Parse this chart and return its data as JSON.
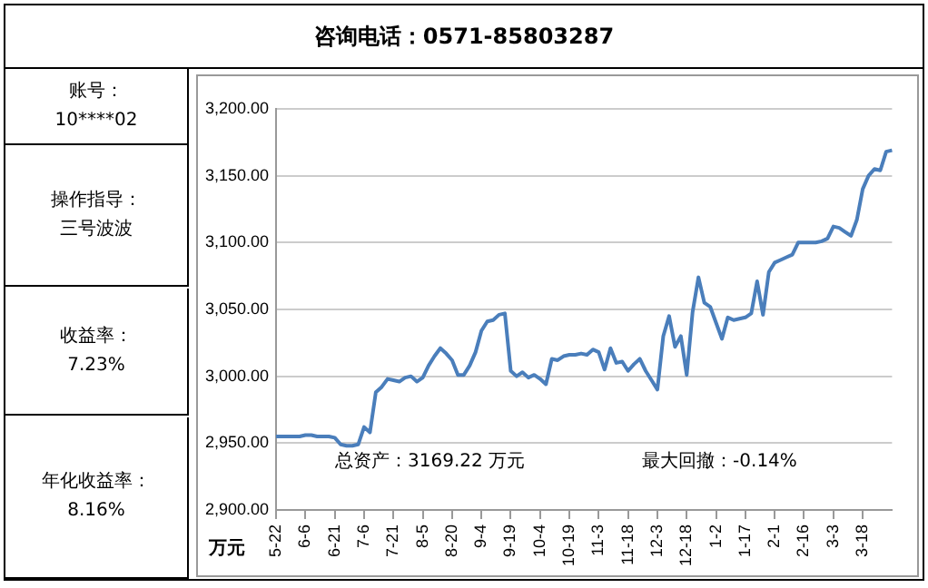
{
  "chart_data": {
    "type": "line",
    "title": "咨询电话：0571-85803287",
    "ylabel": "万元",
    "annotations": [
      "账号：10****02",
      "操作指导：三号波波",
      "收益率：7.23%",
      "年化收益率：8.16%",
      "总资产：3169.22 万元",
      "最大回撤：-0.14%"
    ],
    "categories": [
      "5-22",
      null,
      null,
      null,
      null,
      "6-6",
      null,
      null,
      null,
      null,
      "6-21",
      null,
      null,
      null,
      null,
      "7-6",
      null,
      null,
      null,
      null,
      "7-21",
      null,
      null,
      null,
      null,
      "8-5",
      null,
      null,
      null,
      null,
      "8-20",
      null,
      null,
      null,
      null,
      "9-4",
      null,
      null,
      null,
      null,
      "9-19",
      null,
      null,
      null,
      null,
      "10-4",
      null,
      null,
      null,
      null,
      "10-19",
      null,
      null,
      null,
      null,
      "11-3",
      null,
      null,
      null,
      null,
      "11-18",
      null,
      null,
      null,
      null,
      "12-3",
      null,
      null,
      null,
      null,
      "12-18",
      null,
      null,
      null,
      null,
      "1-2",
      null,
      null,
      null,
      null,
      "1-17",
      null,
      null,
      null,
      null,
      "2-1",
      null,
      null,
      null,
      null,
      "2-16",
      null,
      null,
      null,
      null,
      "3-3",
      null,
      null,
      null,
      null,
      "3-18",
      null,
      null,
      null,
      null,
      null
    ],
    "series": [
      {
        "color": "#4a7ebb",
        "values": [
          2955,
          2955,
          2955,
          2955,
          2955,
          2956,
          2956,
          2955,
          2955,
          2955,
          2954,
          2949,
          2948,
          2948,
          2949,
          2962,
          2958,
          2988,
          2992,
          2998,
          2997,
          2996,
          2999,
          3000,
          2996,
          2999,
          3008,
          3015,
          3021,
          3017,
          3012,
          3001,
          3001,
          3008,
          3018,
          3034,
          3041,
          3042,
          3046,
          3047,
          3004,
          3000,
          3003,
          2999,
          3001,
          2998,
          2994,
          3013,
          3012,
          3015,
          3016,
          3016,
          3017,
          3016,
          3020,
          3018,
          3005,
          3021,
          3010,
          3011,
          3004,
          3009,
          3013,
          3004,
          2997,
          2990,
          3030,
          3045,
          3022,
          3030,
          3001,
          3048,
          3074,
          3055,
          3052,
          3040,
          3028,
          3044,
          3042,
          3043,
          3044,
          3047,
          3071,
          3046,
          3078,
          3085,
          3087,
          3089,
          3091,
          3100,
          3100,
          3100,
          3100,
          3101,
          3103,
          3112,
          3111,
          3108,
          3105,
          3117,
          3140,
          3150,
          3155,
          3154,
          3168,
          3169
        ]
      }
    ],
    "ylim": [
      2900,
      3200
    ],
    "yticks": [
      {
        "value": 2900,
        "label": "2,900.00"
      },
      {
        "value": 2950,
        "label": "2,950.00"
      },
      {
        "value": 3000,
        "label": "3,000.00"
      },
      {
        "value": 3050,
        "label": "3,050.00"
      },
      {
        "value": 3100,
        "label": "3,100.00"
      },
      {
        "value": 3150,
        "label": "3,150.00"
      },
      {
        "value": 3200,
        "label": "3,200.00"
      }
    ],
    "grid": "y",
    "legend": false,
    "marker": "none",
    "line_style": "solid"
  }
}
